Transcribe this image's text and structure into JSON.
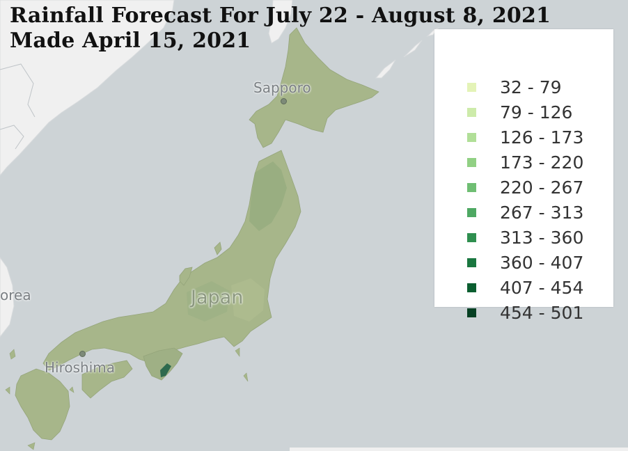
{
  "title": {
    "line1": "Rainfall Forecast For July 22 - August 8, 2021",
    "line2": "Made April 15, 2021"
  },
  "map": {
    "country_label": "Japan",
    "country_label_outside": "orea",
    "cities": [
      "Sapporo",
      "Hiroshima"
    ],
    "land_color": "#a7b68a",
    "sea_color": "#cdd3d6",
    "foreign_land_color": "#f0f0f0"
  },
  "legend": {
    "items": [
      {
        "label": "32 - 79",
        "color": "#e4f3b7"
      },
      {
        "label": "79 - 126",
        "color": "#cdebaa"
      },
      {
        "label": "126 - 173",
        "color": "#b1df98"
      },
      {
        "label": "173 - 220",
        "color": "#91d084"
      },
      {
        "label": "220 - 267",
        "color": "#6fbe73"
      },
      {
        "label": "267 - 313",
        "color": "#4ea863"
      },
      {
        "label": "313 - 360",
        "color": "#2f8f4f"
      },
      {
        "label": "360 - 407",
        "color": "#1a7740"
      },
      {
        "label": "407 - 454",
        "color": "#0b5e30"
      },
      {
        "label": "454 - 501",
        "color": "#064023"
      }
    ]
  }
}
